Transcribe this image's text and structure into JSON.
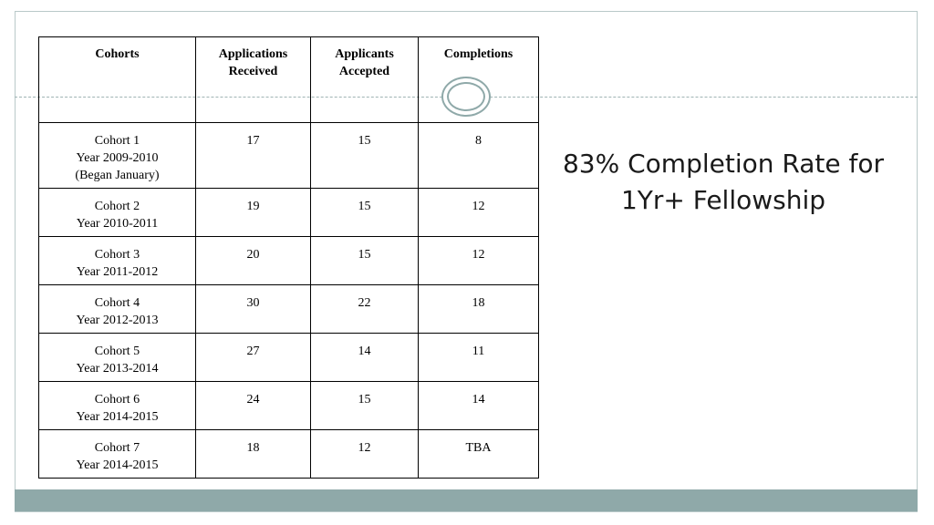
{
  "table": {
    "headers": [
      [
        "Cohorts"
      ],
      [
        "Applications",
        "Received"
      ],
      [
        "Applicants",
        "Accepted"
      ],
      [
        "Completions"
      ]
    ],
    "rows": [
      {
        "cohort": [
          "Cohort 1",
          "Year 2009-2010",
          "(Began January)"
        ],
        "received": "17",
        "accepted": "15",
        "completions": "8"
      },
      {
        "cohort": [
          "Cohort 2",
          "Year 2010-2011"
        ],
        "received": "19",
        "accepted": "15",
        "completions": "12"
      },
      {
        "cohort": [
          "Cohort 3",
          "Year 2011-2012"
        ],
        "received": "20",
        "accepted": "15",
        "completions": "12"
      },
      {
        "cohort": [
          "Cohort 4",
          "Year 2012-2013"
        ],
        "received": "30",
        "accepted": "22",
        "completions": "18"
      },
      {
        "cohort": [
          "Cohort 5",
          "Year 2013-2014"
        ],
        "received": "27",
        "accepted": "14",
        "completions": "11"
      },
      {
        "cohort": [
          "Cohort 6",
          "Year 2014-2015"
        ],
        "received": "24",
        "accepted": "15",
        "completions": "14"
      },
      {
        "cohort": [
          "Cohort 7",
          "Year 2014-2015"
        ],
        "received": "18",
        "accepted": "12",
        "completions": "TBA"
      }
    ]
  },
  "headline": {
    "line1": "83% Completion Rate for",
    "line2": "1Yr+ Fellowship"
  },
  "theme": {
    "accent": "#8fa9a9",
    "frame_border": "#b9c9c9"
  }
}
